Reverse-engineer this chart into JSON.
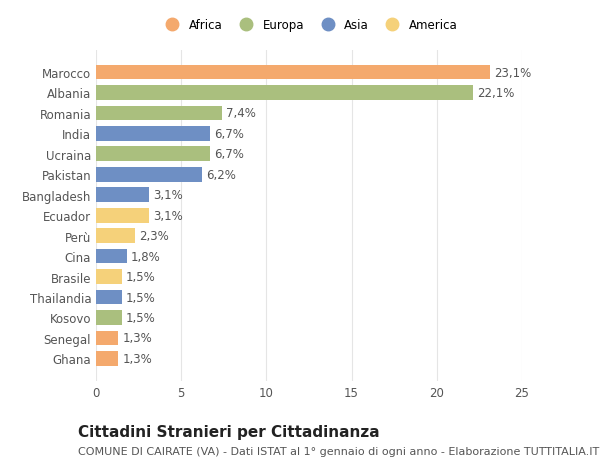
{
  "categories": [
    "Marocco",
    "Albania",
    "Romania",
    "India",
    "Ucraina",
    "Pakistan",
    "Bangladesh",
    "Ecuador",
    "Perù",
    "Cina",
    "Brasile",
    "Thailandia",
    "Kosovo",
    "Senegal",
    "Ghana"
  ],
  "values": [
    23.1,
    22.1,
    7.4,
    6.7,
    6.7,
    6.2,
    3.1,
    3.1,
    2.3,
    1.8,
    1.5,
    1.5,
    1.5,
    1.3,
    1.3
  ],
  "labels": [
    "23,1%",
    "22,1%",
    "7,4%",
    "6,7%",
    "6,7%",
    "6,2%",
    "3,1%",
    "3,1%",
    "2,3%",
    "1,8%",
    "1,5%",
    "1,5%",
    "1,5%",
    "1,3%",
    "1,3%"
  ],
  "colors": [
    "#F4A96D",
    "#AABF7E",
    "#AABF7E",
    "#6E8FC4",
    "#AABF7E",
    "#6E8FC4",
    "#6E8FC4",
    "#F5D17A",
    "#F5D17A",
    "#6E8FC4",
    "#F5D17A",
    "#6E8FC4",
    "#AABF7E",
    "#F4A96D",
    "#F4A96D"
  ],
  "legend": [
    {
      "label": "Africa",
      "color": "#F4A96D"
    },
    {
      "label": "Europa",
      "color": "#AABF7E"
    },
    {
      "label": "Asia",
      "color": "#6E8FC4"
    },
    {
      "label": "America",
      "color": "#F5D17A"
    }
  ],
  "xlim": [
    0,
    25
  ],
  "xticks": [
    0,
    5,
    10,
    15,
    20,
    25
  ],
  "title": "Cittadini Stranieri per Cittadinanza",
  "subtitle": "COMUNE DI CAIRATE (VA) - Dati ISTAT al 1° gennaio di ogni anno - Elaborazione TUTTITALIA.IT",
  "bg_color": "#FFFFFF",
  "grid_color": "#E5E5E5",
  "bar_height": 0.72,
  "label_fontsize": 8.5,
  "tick_fontsize": 8.5,
  "title_fontsize": 11,
  "subtitle_fontsize": 8
}
